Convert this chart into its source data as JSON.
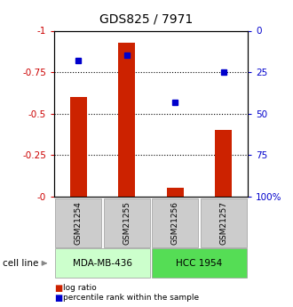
{
  "title": "GDS825 / 7971",
  "samples": [
    "GSM21254",
    "GSM21255",
    "GSM21256",
    "GSM21257"
  ],
  "log_ratios": [
    -0.6,
    -0.93,
    -0.05,
    -0.4
  ],
  "percentile_ranks": [
    -0.82,
    -0.85,
    -0.57,
    -0.75
  ],
  "cell_lines": [
    {
      "label": "MDA-MB-436",
      "samples": [
        0,
        1
      ],
      "color": "#ccffcc"
    },
    {
      "label": "HCC 1954",
      "samples": [
        2,
        3
      ],
      "color": "#55dd55"
    }
  ],
  "bar_color": "#cc2200",
  "dot_color": "#0000cc",
  "axis_color_left": "#cc0000",
  "axis_color_right": "#0000cc",
  "bar_width": 0.35,
  "sample_bg_color": "#cccccc",
  "legend_red": "log ratio",
  "legend_blue": "percentile rank within the sample"
}
